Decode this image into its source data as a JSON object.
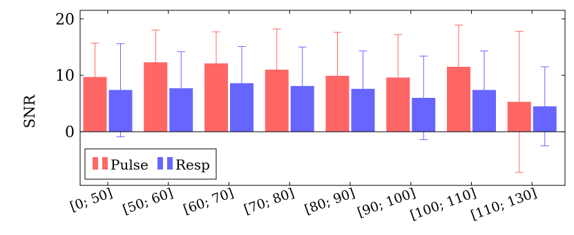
{
  "chart_data": {
    "type": "bar",
    "categories": [
      "[0; 50]",
      "[50; 60]",
      "[60; 70]",
      "[70; 80]",
      "[80; 90]",
      "[90; 100]",
      "[100; 110]",
      "[110; 130]"
    ],
    "series": [
      {
        "name": "Pulse",
        "color": "#ff6666",
        "values": [
          9.7,
          12.3,
          12.1,
          11.0,
          9.9,
          9.6,
          11.5,
          5.3
        ],
        "error_upper": [
          15.7,
          18.0,
          17.7,
          18.2,
          17.6,
          17.2,
          18.9,
          17.8
        ],
        "error_lower": [
          null,
          null,
          null,
          null,
          null,
          null,
          null,
          -7.2
        ]
      },
      {
        "name": "Resp",
        "color": "#6666ff",
        "values": [
          7.4,
          7.7,
          8.6,
          8.1,
          7.6,
          6.0,
          7.4,
          4.5
        ],
        "error_upper": [
          15.6,
          14.2,
          15.1,
          15.0,
          14.3,
          13.4,
          14.3,
          11.5
        ],
        "error_lower": [
          -0.9,
          null,
          null,
          null,
          null,
          -1.4,
          null,
          -2.5
        ]
      }
    ],
    "ylabel": "SNR",
    "xlabel": "",
    "title": "",
    "ylim": [
      -9.5,
      21.5
    ],
    "yticks": [
      "0",
      "10",
      "20"
    ],
    "grid": false,
    "legend_position": "bottom-left"
  }
}
